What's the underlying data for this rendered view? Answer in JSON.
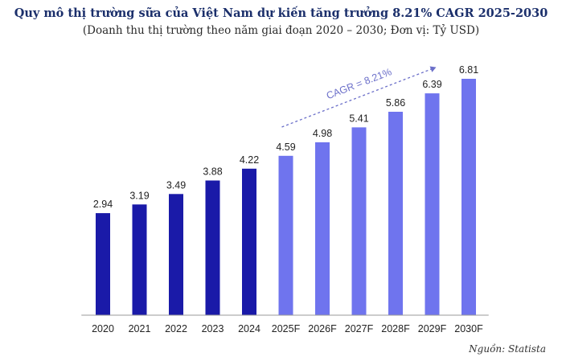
{
  "header": {
    "title": "Quy mô thị trường sữa của Việt Nam dự kiến tăng trưởng 8.21% CAGR 2025-2030",
    "subtitle": "(Doanh thu thị trường theo năm giai đoạn 2020 – 2030; Đơn vị: Tỷ USD)"
  },
  "footer": {
    "source": "Nguồn: Statista"
  },
  "colors": {
    "actual": "#1a1aa8",
    "forecast": "#6f74ee",
    "axis": "#9a9a9a",
    "arrow": "#6b6fc9"
  },
  "chart_data": {
    "type": "bar",
    "title": "Quy mô thị trường sữa của Việt Nam dự kiến tăng trưởng 8.21% CAGR 2025-2030",
    "subtitle": "(Doanh thu thị trường theo năm giai đoạn 2020 – 2030; Đơn vị: Tỷ USD)",
    "xlabel": "",
    "ylabel": "",
    "ylim": [
      0,
      6.81
    ],
    "grid": false,
    "categories": [
      "2020",
      "2021",
      "2022",
      "2023",
      "2024",
      "2025F",
      "2026F",
      "2027F",
      "2028F",
      "2029F",
      "2030F"
    ],
    "values": [
      2.94,
      3.19,
      3.49,
      3.88,
      4.22,
      4.59,
      4.98,
      5.41,
      5.86,
      6.39,
      6.81
    ],
    "value_labels": [
      "2.94",
      "3.19",
      "3.49",
      "3.88",
      "4.22",
      "4.59",
      "4.98",
      "5.41",
      "5.86",
      "6.39",
      "6.81"
    ],
    "forecast": [
      false,
      false,
      false,
      false,
      false,
      true,
      true,
      true,
      true,
      true,
      true
    ],
    "annotation": {
      "text": "CAGR = 8.21%",
      "from_category": "2025F",
      "to_category": "2029F"
    }
  }
}
